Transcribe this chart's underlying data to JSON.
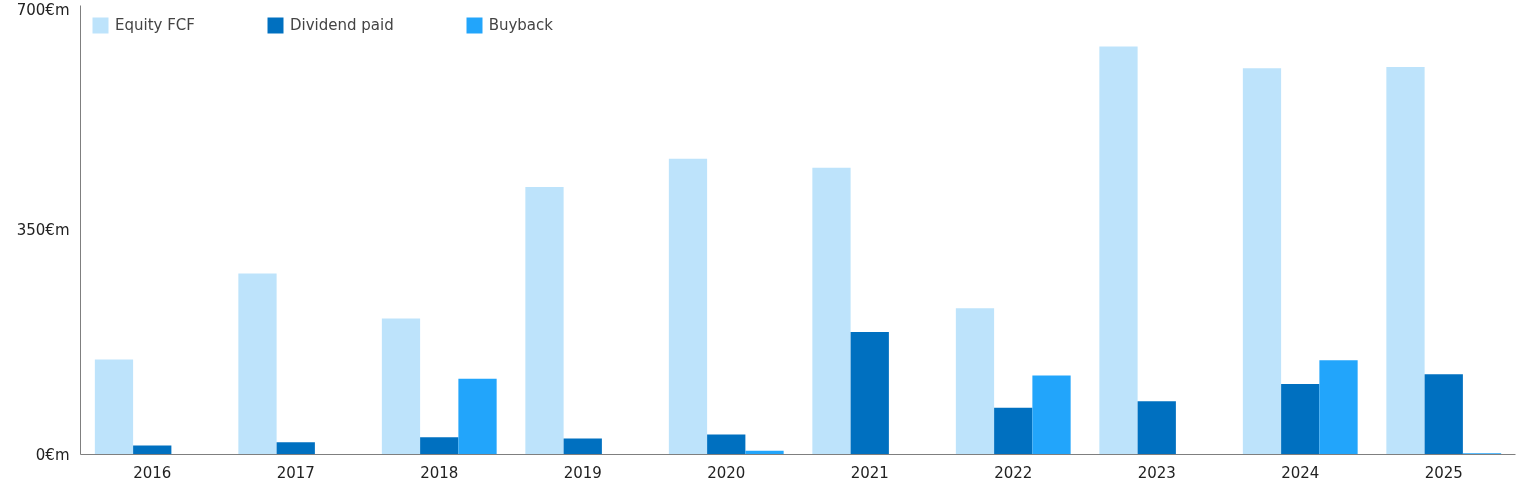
{
  "chart_data": {
    "type": "bar",
    "categories": [
      "2016",
      "2017",
      "2018",
      "2019",
      "2020",
      "2021",
      "2022",
      "2023",
      "2024",
      "2025"
    ],
    "series": [
      {
        "name": "Equity FCF",
        "color": "#bde3fb",
        "values": [
          148,
          282,
          212,
          417,
          461,
          447,
          228,
          636,
          602,
          604
        ]
      },
      {
        "name": "Dividend paid",
        "color": "#0070c0",
        "values": [
          14,
          19,
          27,
          25,
          31,
          191,
          73,
          83,
          110,
          125
        ]
      },
      {
        "name": "Buyback",
        "color": "#22a5fb",
        "values": [
          0,
          0,
          118,
          0,
          6,
          0,
          123,
          0,
          147,
          2
        ]
      }
    ],
    "ylim": [
      0,
      700
    ],
    "yticks": [
      {
        "value": 0,
        "label": "0€m"
      },
      {
        "value": 350,
        "label": "350€m"
      },
      {
        "value": 700,
        "label": "700€m"
      }
    ],
    "grid": false,
    "legend": "top left"
  }
}
